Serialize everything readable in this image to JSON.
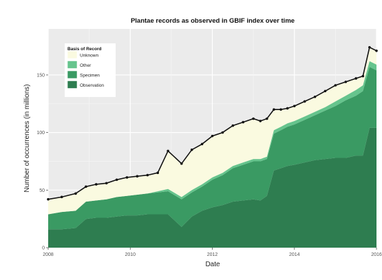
{
  "chart_data": {
    "type": "area",
    "title": "Plantae records as observed in GBIF index over time",
    "xlabel": "Date",
    "ylabel": "Number of occurrences (in millions)",
    "xlim": [
      2008,
      2016
    ],
    "ylim": [
      0,
      190
    ],
    "x_ticks": [
      {
        "value": 2008,
        "label": "2008"
      },
      {
        "value": 2010,
        "label": "2010"
      },
      {
        "value": 2012,
        "label": "2012"
      },
      {
        "value": 2014,
        "label": "2014"
      },
      {
        "value": 2016,
        "label": "2016"
      }
    ],
    "y_ticks": [
      {
        "value": 0,
        "label": "0"
      },
      {
        "value": 50,
        "label": "50"
      },
      {
        "value": 100,
        "label": "100"
      },
      {
        "value": 150,
        "label": "150"
      }
    ],
    "grid": true,
    "legend": {
      "title": "Basis of Record",
      "placement": "top-left"
    },
    "x": [
      2008.0,
      2008.33,
      2008.67,
      2008.92,
      2009.17,
      2009.42,
      2009.67,
      2009.92,
      2010.17,
      2010.42,
      2010.67,
      2010.92,
      2011.25,
      2011.5,
      2011.75,
      2012.0,
      2012.25,
      2012.5,
      2012.75,
      2013.0,
      2013.17,
      2013.33,
      2013.5,
      2013.67,
      2013.83,
      2014.0,
      2014.25,
      2014.5,
      2014.75,
      2015.0,
      2015.25,
      2015.5,
      2015.67,
      2015.83,
      2016.0
    ],
    "series": [
      {
        "name": "Observation",
        "color": "#2e7d50",
        "values": [
          16,
          16,
          17,
          25,
          26,
          26,
          27,
          28,
          28,
          29,
          29,
          29,
          18,
          27,
          32,
          35,
          37,
          40,
          41,
          42,
          41,
          45,
          67,
          69,
          71,
          72,
          74,
          76,
          77,
          78,
          78,
          80,
          80,
          104,
          104
        ]
      },
      {
        "name": "Specimen",
        "color": "#3a9a63",
        "values": [
          13,
          15,
          15,
          15,
          15,
          16,
          17,
          17,
          18,
          18,
          19,
          20,
          24,
          21,
          21,
          24,
          26,
          29,
          31,
          33,
          34,
          32,
          32,
          33,
          34,
          35,
          37,
          39,
          42,
          45,
          50,
          52,
          56,
          53,
          50
        ]
      },
      {
        "name": "Other",
        "color": "#66c48d",
        "values": [
          0,
          0,
          0,
          0,
          0,
          0,
          0,
          0,
          0,
          0,
          1,
          2,
          2,
          2,
          2,
          2,
          2,
          2,
          2,
          2,
          2,
          2,
          3,
          3,
          3,
          3,
          3,
          3,
          3,
          4,
          4,
          5,
          5,
          5,
          5
        ]
      },
      {
        "name": "Unknown",
        "color": "#fafae0",
        "values": [
          13,
          13,
          15,
          13,
          14,
          14,
          15,
          16,
          16,
          16,
          16,
          33,
          29,
          35,
          35,
          36,
          35,
          35,
          35,
          35,
          33,
          33,
          18,
          15,
          13,
          13,
          13,
          13,
          14,
          14,
          12,
          10,
          8,
          12,
          12
        ]
      }
    ],
    "total_line_color": "#111111"
  }
}
